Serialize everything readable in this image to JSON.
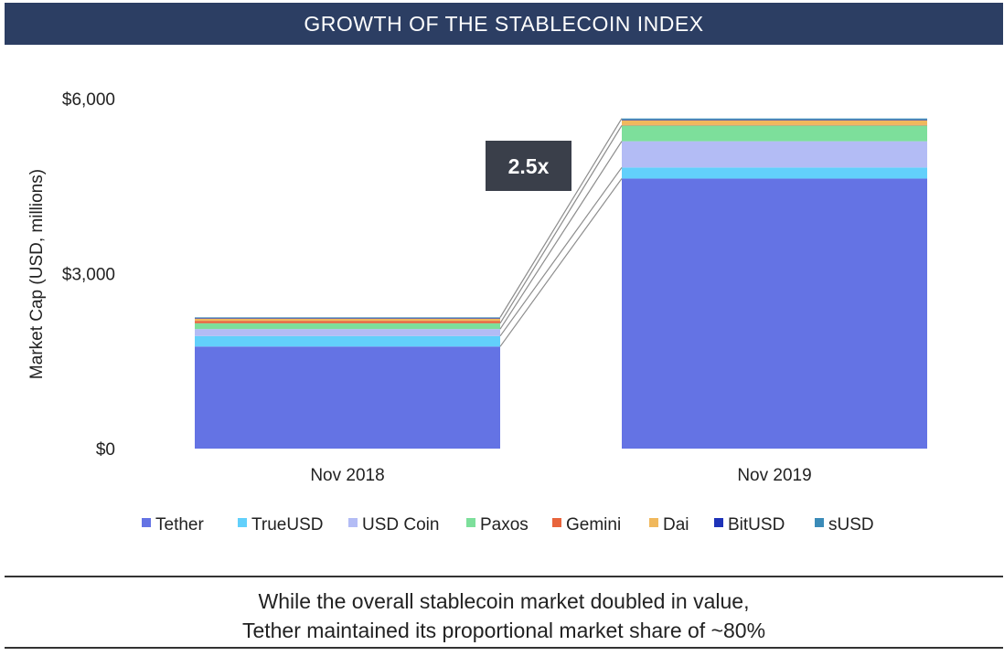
{
  "header": {
    "title": "GROWTH OF THE STABLECOIN INDEX"
  },
  "chart_data": {
    "type": "bar",
    "stacked": true,
    "categories": [
      "Nov 2018",
      "Nov 2019"
    ],
    "ylabel": "Market Cap (USD, millions)",
    "ylim": [
      0,
      6000
    ],
    "yticks": [
      "$0",
      "$3,000",
      "$6,000"
    ],
    "grid": false,
    "legend_position": "bottom",
    "series": [
      {
        "name": "Tether",
        "color": "#6473e4",
        "values": [
          1750,
          4630
        ]
      },
      {
        "name": "TrueUSD",
        "color": "#62d0fb",
        "values": [
          180,
          190
        ]
      },
      {
        "name": "USD Coin",
        "color": "#b3bcf5",
        "values": [
          120,
          450
        ]
      },
      {
        "name": "Paxos",
        "color": "#7ddf9b",
        "values": [
          100,
          270
        ]
      },
      {
        "name": "Gemini",
        "color": "#e8643c",
        "values": [
          40,
          10
        ]
      },
      {
        "name": "Dai",
        "color": "#f0b85c",
        "values": [
          40,
          80
        ]
      },
      {
        "name": "BitUSD",
        "color": "#1e33b8",
        "values": [
          10,
          10
        ]
      },
      {
        "name": "sUSD",
        "color": "#3b8bb8",
        "values": [
          10,
          20
        ]
      }
    ],
    "annotation": {
      "label": "2.5x"
    }
  },
  "caption": {
    "line1": "While the overall stablecoin market doubled in value,",
    "line2": "Tether maintained its proportional market share of ~80%"
  }
}
